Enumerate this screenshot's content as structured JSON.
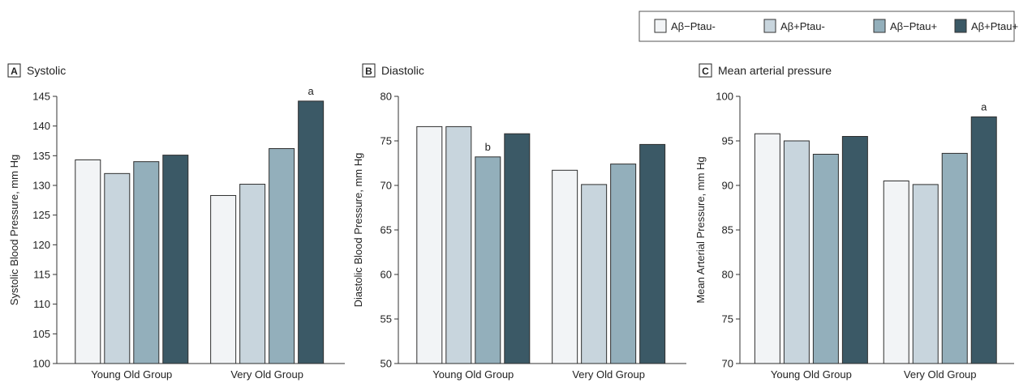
{
  "legend": {
    "placement": "top-right",
    "items": [
      {
        "label": "Aβ−Ptau-",
        "color": "#f2f4f6"
      },
      {
        "label": "Aβ+Ptau-",
        "color": "#c8d5dd"
      },
      {
        "label": "Aβ−Ptau+",
        "color": "#93afbb"
      },
      {
        "label": "Aβ+Ptau+",
        "color": "#3b5966"
      }
    ]
  },
  "chart_data": [
    {
      "type": "bar",
      "panel_letter": "A",
      "title": "Systolic",
      "ylabel": "Systolic Blood Pressure, mm Hg",
      "xlabel": "",
      "categories": [
        "Young Old Group",
        "Very Old Group"
      ],
      "ylim": [
        100,
        145
      ],
      "yticks": [
        100,
        105,
        110,
        115,
        120,
        125,
        130,
        135,
        140,
        145
      ],
      "grid": false,
      "series": [
        {
          "name": "Aβ−Ptau-",
          "values": [
            134.3,
            128.3
          ]
        },
        {
          "name": "Aβ+Ptau-",
          "values": [
            132.0,
            130.2
          ]
        },
        {
          "name": "Aβ−Ptau+",
          "values": [
            134.0,
            136.2
          ]
        },
        {
          "name": "Aβ+Ptau+",
          "values": [
            135.1,
            144.2
          ]
        }
      ],
      "annotations": [
        {
          "series": 3,
          "category": 1,
          "text": "a"
        }
      ]
    },
    {
      "type": "bar",
      "panel_letter": "B",
      "title": "Diastolic",
      "ylabel": "Diastolic Blood Pressure, mm Hg",
      "xlabel": "",
      "categories": [
        "Young Old Group",
        "Very Old Group"
      ],
      "ylim": [
        50,
        80
      ],
      "yticks": [
        50,
        55,
        60,
        65,
        70,
        75,
        80
      ],
      "grid": false,
      "series": [
        {
          "name": "Aβ−Ptau-",
          "values": [
            76.6,
            71.7
          ]
        },
        {
          "name": "Aβ+Ptau-",
          "values": [
            76.6,
            70.1
          ]
        },
        {
          "name": "Aβ−Ptau+",
          "values": [
            73.2,
            72.4
          ]
        },
        {
          "name": "Aβ+Ptau+",
          "values": [
            75.8,
            74.6
          ]
        }
      ],
      "annotations": [
        {
          "series": 2,
          "category": 0,
          "text": "b"
        }
      ]
    },
    {
      "type": "bar",
      "panel_letter": "C",
      "title": "Mean arterial pressure",
      "ylabel": "Mean Arterial Pressure, mm Hg",
      "xlabel": "",
      "categories": [
        "Young Old Group",
        "Very Old Group"
      ],
      "ylim": [
        70,
        100
      ],
      "yticks": [
        70,
        75,
        80,
        85,
        90,
        95,
        100
      ],
      "grid": false,
      "series": [
        {
          "name": "Aβ−Ptau-",
          "values": [
            95.8,
            90.5
          ]
        },
        {
          "name": "Aβ+Ptau-",
          "values": [
            95.0,
            90.1
          ]
        },
        {
          "name": "Aβ−Ptau+",
          "values": [
            93.5,
            93.6
          ]
        },
        {
          "name": "Aβ+Ptau+",
          "values": [
            95.5,
            97.7
          ]
        }
      ],
      "annotations": [
        {
          "series": 3,
          "category": 1,
          "text": "a"
        }
      ]
    }
  ]
}
